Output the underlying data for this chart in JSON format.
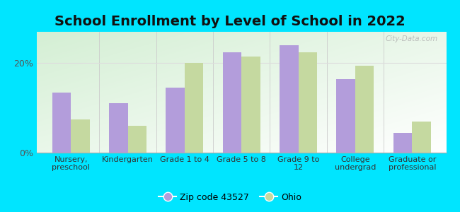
{
  "title": "School Enrollment by Level of School in 2022",
  "categories": [
    "Nursery,\npreschool",
    "Kindergarten",
    "Grade 1 to 4",
    "Grade 5 to 8",
    "Grade 9 to\n12",
    "College\nundergrad",
    "Graduate or\nprofessional"
  ],
  "zip_values": [
    13.5,
    11.0,
    14.5,
    22.5,
    24.0,
    16.5,
    4.5
  ],
  "ohio_values": [
    7.5,
    6.0,
    20.0,
    21.5,
    22.5,
    19.5,
    7.0
  ],
  "zip_color": "#b39ddb",
  "ohio_color": "#c5d9a0",
  "background_color": "#00e5ff",
  "ylabel_ticks": [
    "0%",
    "20%"
  ],
  "yticks": [
    0,
    20
  ],
  "ylim": [
    0,
    27
  ],
  "legend_labels": [
    "Zip code 43527",
    "Ohio"
  ],
  "title_fontsize": 14,
  "watermark": "City-Data.com",
  "grad_color_top_left": "#d4efd4",
  "grad_color_bottom_right": "#ffffff",
  "grid_color": "#dddddd",
  "separator_color": "#cccccc",
  "tick_label_color": "#555555",
  "title_color": "#111111"
}
